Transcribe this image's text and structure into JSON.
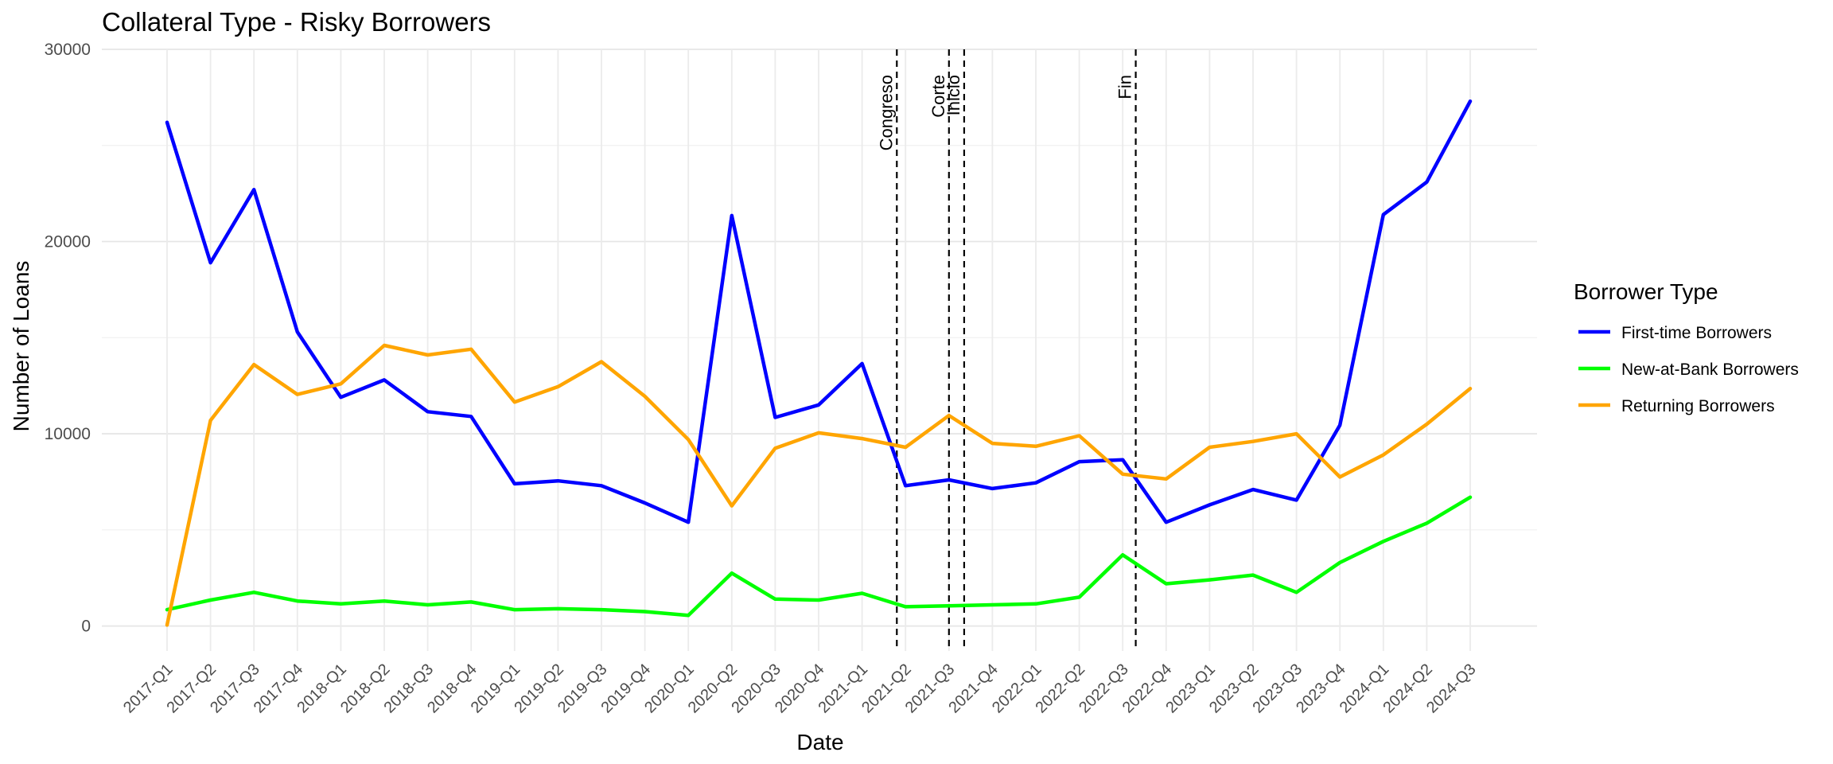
{
  "chart_data": {
    "type": "line",
    "title": "Collateral Type - Risky Borrowers",
    "xlabel": "Date",
    "ylabel": "Number of Loans",
    "ylim": [
      -1300,
      30000
    ],
    "y_ticks": [
      0,
      10000,
      20000,
      30000
    ],
    "y_tick_labels": [
      "0",
      "10000",
      "20000",
      "30000"
    ],
    "grid": true,
    "categories": [
      "2017-Q1",
      "2017-Q2",
      "2017-Q3",
      "2017-Q4",
      "2018-Q1",
      "2018-Q2",
      "2018-Q3",
      "2018-Q4",
      "2019-Q1",
      "2019-Q2",
      "2019-Q3",
      "2019-Q4",
      "2020-Q1",
      "2020-Q2",
      "2020-Q3",
      "2020-Q4",
      "2021-Q1",
      "2021-Q2",
      "2021-Q3",
      "2021-Q4",
      "2022-Q1",
      "2022-Q2",
      "2022-Q3",
      "2022-Q4",
      "2023-Q1",
      "2023-Q2",
      "2023-Q3",
      "2023-Q4",
      "2024-Q1",
      "2024-Q2",
      "2024-Q3"
    ],
    "legend": {
      "title": "Borrower Type",
      "position": "right"
    },
    "series": [
      {
        "name": "First-time Borrowers",
        "color": "#0000ff",
        "values": [
          26200,
          18900,
          22700,
          15300,
          11900,
          12800,
          11150,
          10900,
          7400,
          7550,
          7300,
          6400,
          5400,
          21350,
          10850,
          11500,
          13650,
          7300,
          7600,
          7150,
          7450,
          8550,
          8650,
          5400,
          6300,
          7100,
          6550,
          10450,
          21400,
          23100,
          27300
        ]
      },
      {
        "name": "New-at-Bank Borrowers",
        "color": "#00ff00",
        "values": [
          850,
          1350,
          1750,
          1300,
          1150,
          1300,
          1100,
          1250,
          850,
          900,
          850,
          750,
          550,
          2750,
          1400,
          1350,
          1700,
          1000,
          1050,
          1100,
          1150,
          1500,
          3700,
          2200,
          2400,
          2650,
          1750,
          3300,
          4400,
          5350,
          6700
        ]
      },
      {
        "name": "Returning Borrowers",
        "color": "#ffa500",
        "values": [
          50,
          10700,
          13600,
          12050,
          12600,
          14600,
          14100,
          14400,
          11650,
          12450,
          13750,
          11950,
          9700,
          6250,
          9250,
          10050,
          9750,
          9300,
          10950,
          9500,
          9350,
          9900,
          7900,
          7650,
          9300,
          9600,
          10000,
          7750,
          8900,
          10500,
          12350
        ]
      }
    ],
    "annotations": [
      {
        "label": "Congreso",
        "x_index": 16.8,
        "style": "dashed"
      },
      {
        "label": "Corte",
        "x_index": 18.0,
        "style": "dashed"
      },
      {
        "label": "Inicio",
        "x_index": 18.35,
        "style": "dashed"
      },
      {
        "label": "Fin",
        "x_index": 22.3,
        "style": "dashed"
      }
    ]
  }
}
